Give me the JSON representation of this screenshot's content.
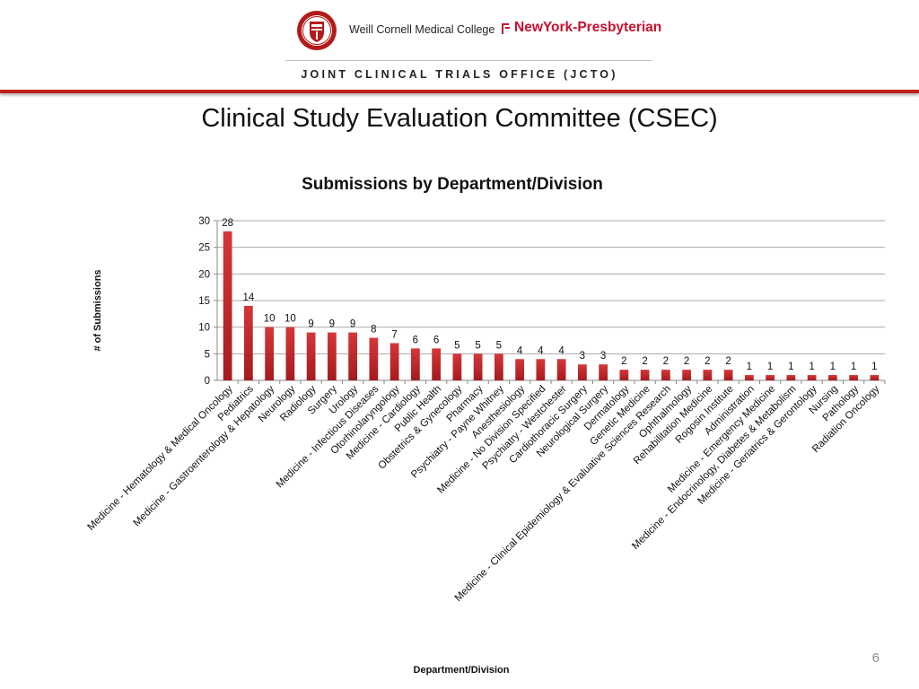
{
  "header": {
    "college_name": "Weill Cornell Medical College",
    "hospital_name": "NewYork-Presbyterian",
    "office_name": "JOINT CLINICAL TRIALS OFFICE (JCTO)"
  },
  "slide": {
    "title": "Clinical Study Evaluation Committee (CSEC)",
    "page_number": "6"
  },
  "colors": {
    "brand_red": "#c0201f",
    "bar": "#c6282b"
  },
  "chart_data": {
    "type": "bar",
    "title": "Submissions by Department/Division",
    "xlabel": "Department/Division",
    "ylabel": "# of Submissions",
    "ylim": [
      0,
      30
    ],
    "yticks": [
      0,
      5,
      10,
      15,
      20,
      25,
      30
    ],
    "grid": true,
    "legend": "none",
    "categories": [
      "Medicine - Hematology & Medical Oncology",
      "Pediatrics",
      "Medicine - Gastroenterology & Hepatology",
      "Neurology",
      "Radiology",
      "Surgery",
      "Urology",
      "Medicine - Infectious Diseases",
      "Otorhinolaryngology",
      "Medicine - Cardiology",
      "Public Health",
      "Obstetrics & Gynecology",
      "Pharmacy",
      "Psychiatry - Payne Whitney",
      "Anesthesiology",
      "Medicine - No Division Specified",
      "Psychiatry - Westchester",
      "Cardiothoracic Surgery",
      "Neurological Surgery",
      "Dermatology",
      "Genetic Medicine",
      "Medicine - Clinical Epidemiology & Evaluative Sciences Research",
      "Ophthalmology",
      "Rehabilitation Medicine",
      "Rogosin Institute",
      "Administration",
      "Medicine - Emergency Medicine",
      "Medicine - Endocrinology, Diabetes & Metabolism",
      "Medicine - Geriatrics & Gerontology",
      "Nursing",
      "Pathology",
      "Radiation Oncology"
    ],
    "values": [
      28,
      14,
      10,
      10,
      9,
      9,
      9,
      8,
      7,
      6,
      6,
      5,
      5,
      5,
      4,
      4,
      4,
      3,
      3,
      2,
      2,
      2,
      2,
      2,
      2,
      1,
      1,
      1,
      1,
      1,
      1,
      1
    ]
  }
}
